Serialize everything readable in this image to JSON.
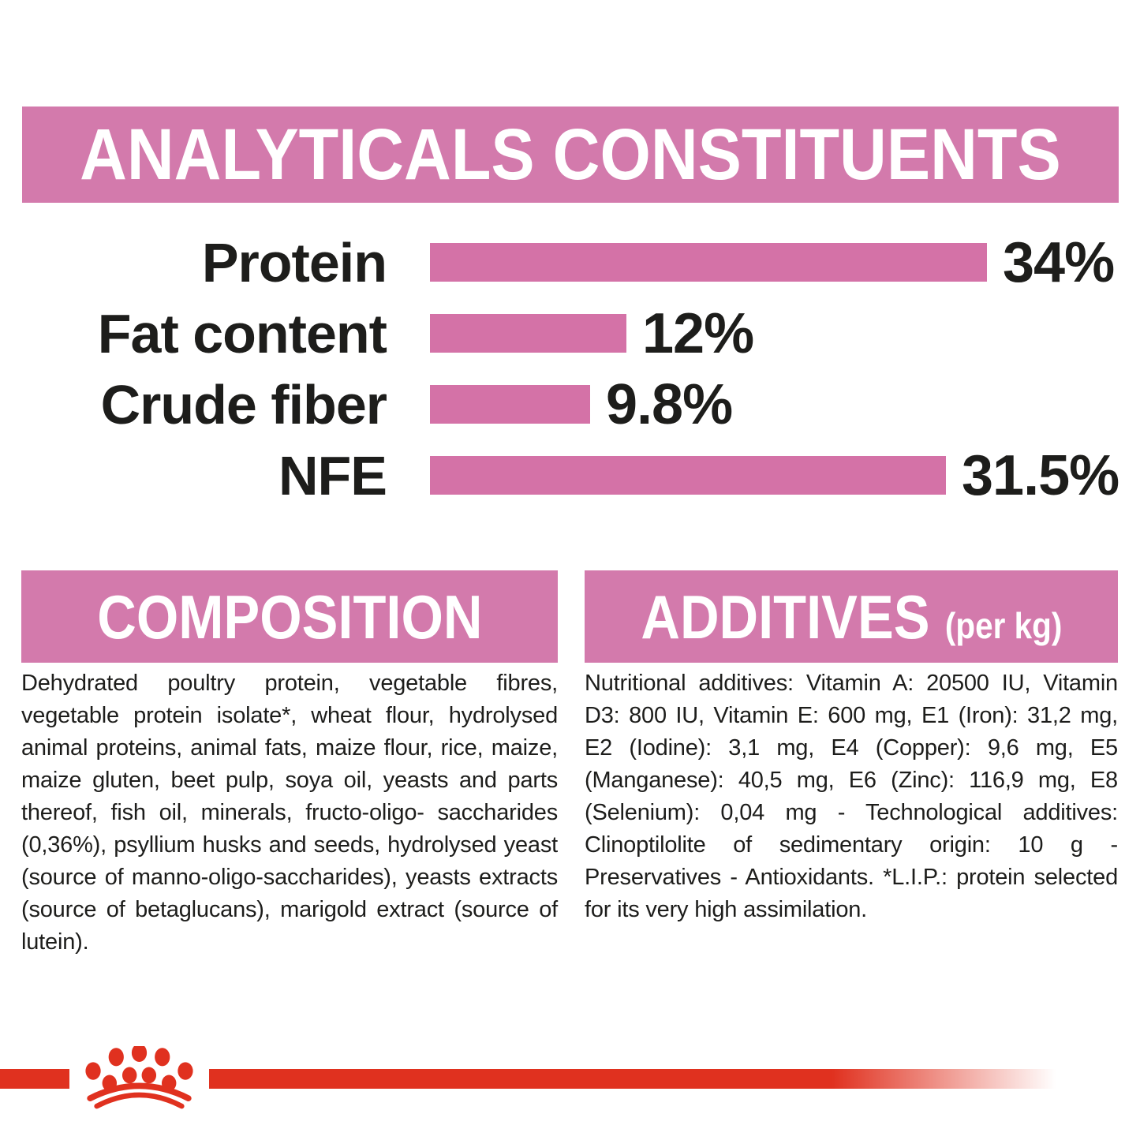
{
  "colors": {
    "banner_pink": "#d37aac",
    "bar_pink": "#d472a7",
    "brand_red": "#e0311f",
    "text": "#1d1d1b"
  },
  "analyticals": {
    "title": "ANALYTICALS CONSTITUENTS"
  },
  "chart_data": {
    "type": "bar",
    "orientation": "horizontal",
    "title": "ANALYTICALS CONSTITUENTS",
    "categories": [
      "Protein",
      "Fat content",
      "Crude fiber",
      "NFE"
    ],
    "values": [
      34,
      12,
      9.8,
      31.5
    ],
    "value_labels": [
      "34%",
      "12%",
      "9.8%",
      "31.5%"
    ],
    "unit": "%",
    "xlim": [
      0,
      40
    ],
    "grid": false,
    "legend": false,
    "bar_color": "#d472a7",
    "label_color": "#1d1d1b"
  },
  "composition": {
    "title": "COMPOSITION",
    "body": "Dehydrated poultry protein, vegetable fibres, vegetable protein isolate*, wheat flour, hydrolysed animal proteins, animal fats, maize flour, rice, maize, maize gluten, beet pulp, soya oil, yeasts and parts thereof, fish oil, minerals, fructo-oligo- saccharides (0,36%), psyllium husks and seeds, hydrolysed yeast (source of manno-oligo-saccharides), yeasts extracts (source of betaglucans), marigold extract (source of lutein)."
  },
  "additives": {
    "title": "ADDITIVES",
    "subtitle": "(per kg)",
    "body": "Nutritional additives: Vitamin A: 20500 IU, Vitamin D3: 800 IU, Vitamin E: 600 mg, E1 (Iron): 31,2 mg, E2 (Iodine): 3,1 mg, E4 (Copper): 9,6 mg, E5 (Manganese): 40,5 mg, E6 (Zinc): 116,9 mg, E8 (Selenium): 0,04 mg - Technological additives: Clinoptilolite of sedimentary origin: 10 g - Preservatives - Antioxidants. *L.I.P.: protein selected for its very high assimilation."
  },
  "footer": {
    "logo": "royal-canin-crown-logo"
  }
}
